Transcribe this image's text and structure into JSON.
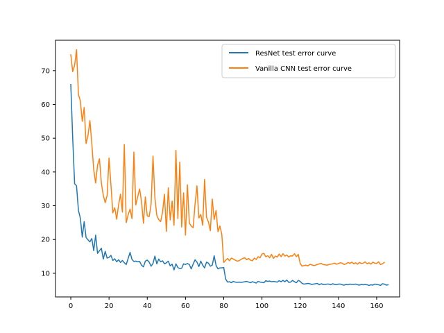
{
  "chart_data": {
    "type": "line",
    "title": "",
    "xlabel": "",
    "ylabel": "",
    "xlim": [
      -8,
      172
    ],
    "ylim": [
      3,
      79
    ],
    "xticks": [
      0,
      20,
      40,
      60,
      80,
      100,
      120,
      140,
      160
    ],
    "yticks": [
      10,
      20,
      30,
      40,
      50,
      60,
      70
    ],
    "grid": false,
    "legend": "top-right",
    "series": [
      {
        "name": "ResNet test error curve",
        "color": "#1f77b4",
        "x_start": 0,
        "values": [
          65.9,
          50.0,
          36.5,
          35.9,
          28.6,
          26.3,
          20.7,
          25.3,
          20.6,
          19.9,
          19.3,
          20.3,
          16.7,
          21.3,
          15.9,
          16.7,
          17.4,
          14.2,
          16.5,
          14.5,
          14.7,
          15.3,
          13.8,
          14.3,
          13.4,
          14.0,
          13.2,
          13.8,
          13.1,
          12.6,
          14.4,
          16.2,
          14.1,
          13.5,
          13.6,
          13.4,
          13.5,
          12.4,
          11.9,
          13.6,
          13.9,
          13.3,
          12.1,
          12.9,
          15.1,
          12.8,
          14.2,
          13.4,
          13.7,
          12.8,
          13.1,
          13.6,
          12.2,
          12.7,
          11.0,
          12.8,
          11.7,
          11.4,
          11.5,
          12.8,
          12.6,
          12.9,
          12.6,
          11.3,
          12.7,
          14.0,
          13.3,
          12.0,
          13.6,
          12.4,
          11.6,
          13.3,
          13.0,
          12.1,
          12.4,
          15.2,
          12.3,
          11.3,
          11.6,
          11.6,
          11.7,
          8.3,
          7.4,
          7.5,
          7.2,
          7.6,
          7.4,
          7.3,
          7.4,
          7.3,
          7.4,
          7.5,
          7.6,
          7.4,
          7.2,
          7.5,
          7.3,
          7.1,
          7.6,
          7.4,
          7.3,
          7.2,
          7.8,
          7.6,
          7.7,
          7.5,
          7.6,
          7.5,
          7.4,
          7.8,
          7.5,
          7.9,
          7.5,
          8.0,
          7.3,
          7.4,
          7.9,
          7.5,
          7.2,
          7.9,
          7.6,
          7.0,
          6.8,
          6.9,
          7.0,
          6.9,
          6.7,
          6.8,
          6.9,
          7.0,
          6.6,
          6.9,
          6.7,
          6.7,
          6.8,
          6.8,
          6.6,
          6.9,
          6.7,
          6.6,
          6.8,
          6.8,
          6.6,
          6.5,
          6.7,
          6.6,
          6.8,
          6.7,
          6.7,
          6.8,
          6.6,
          6.5,
          6.7,
          6.6,
          6.7,
          6.6,
          6.4,
          6.6,
          6.5,
          6.8,
          6.7,
          6.6,
          6.4,
          6.9,
          6.8,
          6.5,
          6.6
        ]
      },
      {
        "name": "Vanilla CNN test error curve",
        "color": "#ff7f0e",
        "x_start": 0,
        "values": [
          74.7,
          69.7,
          71.6,
          76.2,
          62.9,
          61.0,
          55.0,
          59.1,
          48.4,
          50.8,
          55.2,
          48.3,
          40.7,
          36.7,
          42.0,
          43.9,
          36.7,
          33.1,
          30.9,
          33.0,
          44.1,
          36.2,
          27.9,
          29.4,
          26.0,
          30.2,
          33.4,
          28.1,
          48.1,
          25.0,
          27.3,
          29.0,
          26.2,
          45.9,
          30.2,
          32.6,
          35.0,
          31.2,
          24.8,
          32.6,
          27.0,
          26.8,
          30.4,
          44.7,
          32.4,
          27.1,
          25.9,
          25.3,
          28.1,
          33.4,
          22.4,
          35.3,
          25.8,
          31.4,
          24.2,
          46.4,
          26.2,
          42.9,
          23.7,
          33.8,
          21.3,
          36.2,
          24.9,
          24.0,
          23.5,
          30.5,
          35.9,
          26.4,
          27.4,
          24.2,
          37.8,
          26.6,
          25.2,
          22.6,
          32.0,
          25.9,
          28.6,
          22.3,
          24.0,
          21.5,
          13.2,
          13.8,
          14.4,
          13.7,
          14.5,
          14.2,
          13.9,
          13.6,
          13.7,
          14.1,
          14.4,
          14.6,
          14.0,
          14.4,
          13.9,
          13.7,
          14.5,
          14.1,
          14.9,
          14.6,
          15.7,
          15.9,
          14.9,
          15.2,
          14.6,
          15.6,
          14.4,
          15.1,
          14.8,
          15.7,
          14.9,
          15.8,
          15.1,
          15.4,
          14.8,
          15.2,
          15.1,
          15.8,
          14.9,
          15.6,
          12.9,
          12.1,
          12.3,
          12.4,
          12.2,
          12.6,
          12.5,
          12.3,
          12.4,
          12.6,
          12.8,
          12.9,
          12.6,
          12.5,
          12.4,
          12.6,
          12.7,
          12.8,
          13.0,
          12.7,
          12.9,
          13.1,
          13.0,
          12.6,
          12.8,
          13.2,
          12.9,
          13.3,
          12.8,
          13.1,
          12.7,
          13.2,
          12.9,
          13.0,
          13.4,
          12.8,
          13.1,
          12.7,
          13.3,
          13.0,
          12.9,
          13.4,
          12.6,
          12.8,
          13.2
        ]
      }
    ]
  }
}
